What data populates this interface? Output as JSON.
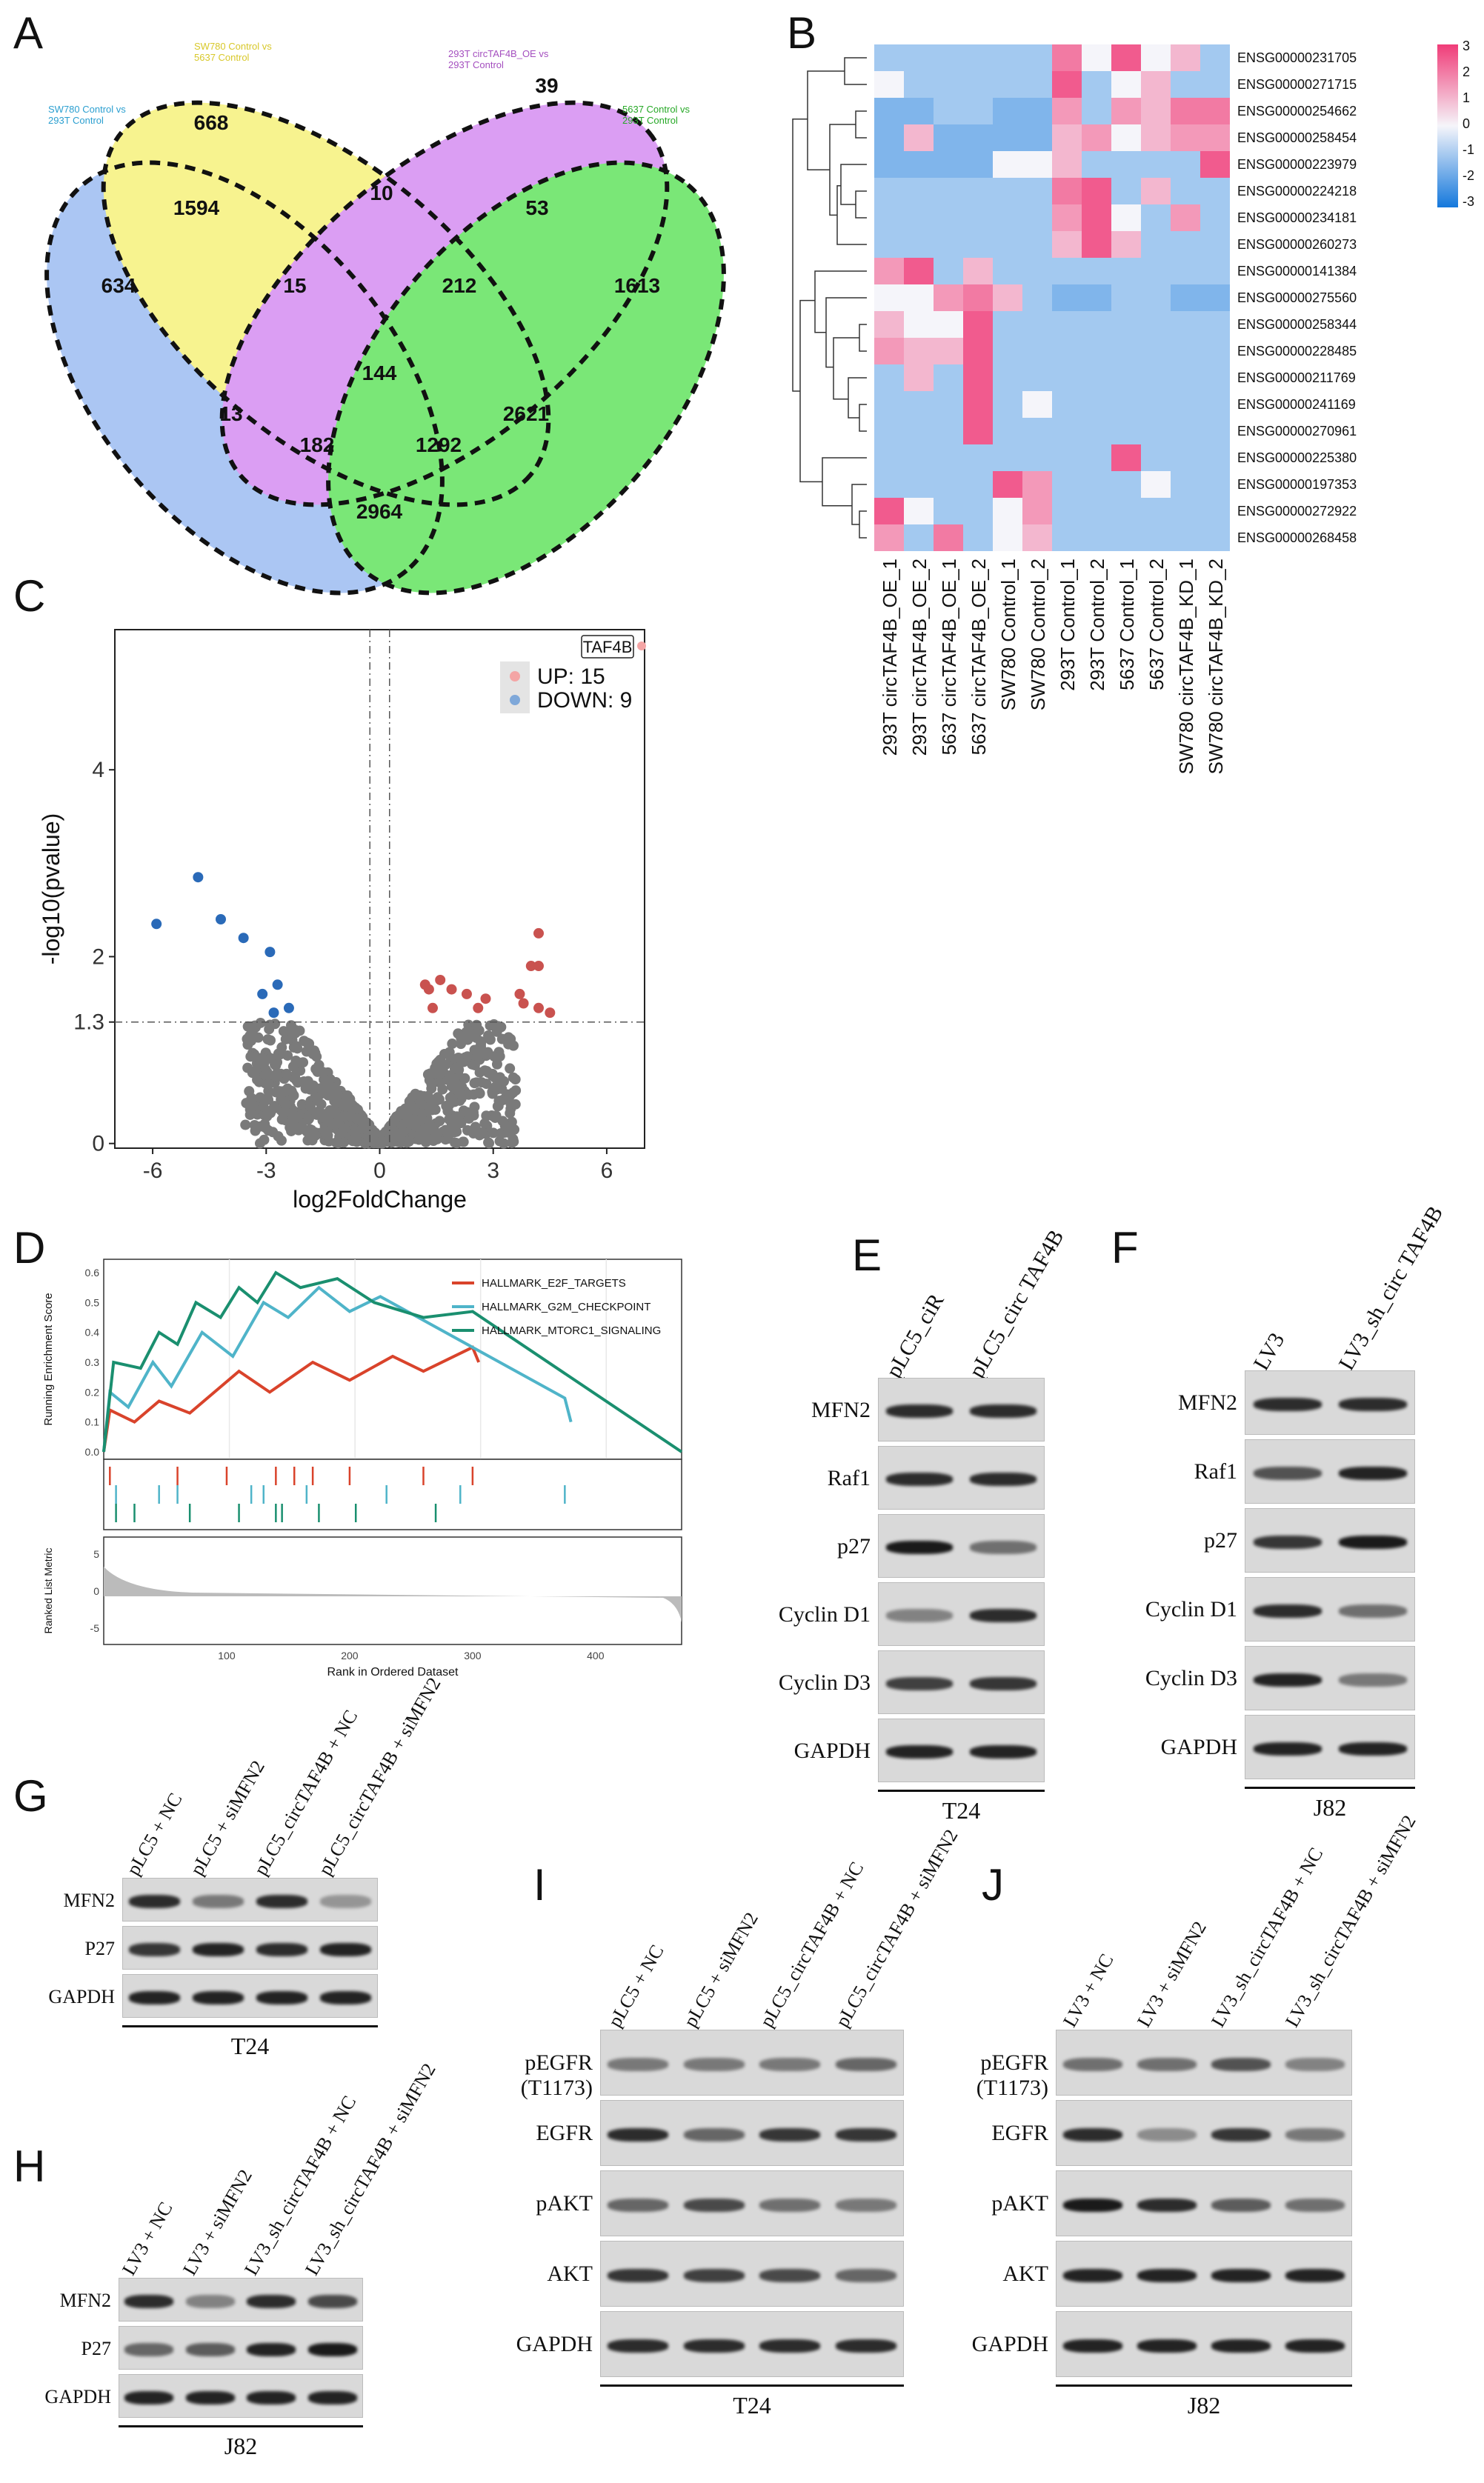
{
  "panel_labels": {
    "A": "A",
    "B": "B",
    "C": "C",
    "D": "D",
    "E": "E",
    "F": "F",
    "G": "G",
    "H": "H",
    "I": "I",
    "J": "J"
  },
  "venn": {
    "set_labels": [
      "SW780 Control vs 293T Control",
      "SW780 Control vs 5637 Control",
      "293T circTAF4B_OE vs 293T Control",
      "5637 Control vs 293T Control"
    ],
    "counts": [
      "634",
      "668",
      "39",
      "1613",
      "1594",
      "10",
      "53",
      "15",
      "212",
      "144",
      "13",
      "182",
      "1292",
      "2621",
      "2964"
    ],
    "colors": [
      "#8fb3ef",
      "#f5ef6a",
      "#cf7ef0",
      "#4ee04a"
    ]
  },
  "heatmap": {
    "genes": [
      "ENSG00000231705",
      "ENSG00000271715",
      "ENSG00000254662",
      "ENSG00000258454",
      "ENSG00000223979",
      "ENSG00000224218",
      "ENSG00000234181",
      "ENSG00000260273",
      "ENSG00000141384",
      "ENSG00000275560",
      "ENSG00000258344",
      "ENSG00000228485",
      "ENSG00000211769",
      "ENSG00000241169",
      "ENSG00000270961",
      "ENSG00000225380",
      "ENSG00000197353",
      "ENSG00000272922",
      "ENSG00000268458"
    ],
    "samples": [
      "293T circTAF4B_OE_1",
      "293T circTAF4B_OE_2",
      "5637 circTAF4B_OE_1",
      "5637 circTAF4B_OE_2",
      "SW780 Control_1",
      "SW780 Control_2",
      "293T Control_1",
      "293T Control_2",
      "5637 Control_1",
      "5637 Control_2",
      "SW780 circTAF4B_KD_1",
      "SW780 circTAF4B_KD_2"
    ],
    "scale": [
      "3",
      "2",
      "1",
      "0",
      "-1",
      "-2",
      "-3"
    ]
  },
  "chart_data": {
    "type": "scatter",
    "xlabel": "log2FoldChange",
    "ylabel": "-log10(pvalue)",
    "xticks": [
      "-6",
      "-3",
      "0",
      "3",
      "6"
    ],
    "yticks": [
      "0",
      "1.3",
      "2",
      "4"
    ],
    "legend": {
      "title": "TAF4B",
      "up": "UP: 15",
      "down": "DOWN: 9"
    },
    "up_points": [
      [
        4.2,
        2.25
      ],
      [
        4.0,
        1.9
      ],
      [
        4.2,
        1.9
      ],
      [
        1.3,
        1.65
      ],
      [
        1.6,
        1.75
      ],
      [
        1.9,
        1.65
      ],
      [
        2.3,
        1.6
      ],
      [
        3.8,
        1.5
      ],
      [
        4.2,
        1.45
      ],
      [
        4.5,
        1.4
      ],
      [
        3.7,
        1.6
      ],
      [
        1.4,
        1.45
      ],
      [
        2.8,
        1.55
      ],
      [
        2.6,
        1.45
      ],
      [
        1.2,
        1.7
      ]
    ],
    "down_points": [
      [
        -5.9,
        2.35
      ],
      [
        -4.8,
        2.85
      ],
      [
        -4.2,
        2.4
      ],
      [
        -3.6,
        2.2
      ],
      [
        -2.9,
        2.05
      ],
      [
        -2.7,
        1.7
      ],
      [
        -3.1,
        1.6
      ],
      [
        -2.4,
        1.45
      ],
      [
        -2.8,
        1.4
      ]
    ]
  },
  "gsea": {
    "ylabel_top": "Running Enrichment Score",
    "ylabel_bottom": "Ranked List Metric",
    "xlabel": "Rank in Ordered Dataset",
    "yticks_top": [
      "0.6",
      "0.5",
      "0.4",
      "0.3",
      "0.2",
      "0.1",
      "0.0"
    ],
    "yticks_bottom": [
      "5",
      "0",
      "-5"
    ],
    "xticks": [
      "100",
      "200",
      "300",
      "400"
    ],
    "legend": [
      "HALLMARK_E2F_TARGETS",
      "HALLMARK_G2M_CHECKPOINT",
      "HALLMARK_MTORC1_SIGNALING"
    ],
    "colors": [
      "#d9432b",
      "#4fb4c9",
      "#1a8f6f"
    ]
  },
  "blot_E": {
    "lanes": [
      "pLC5_ciR",
      "pLC5_circ TAF4B"
    ],
    "rows": [
      "MFN2",
      "Raf1",
      "p27",
      "Cyclin D1",
      "Cyclin D3",
      "GAPDH"
    ],
    "cell": "T24"
  },
  "blot_F": {
    "lanes": [
      "LV3",
      "LV3_sh_circ TAF4B"
    ],
    "rows": [
      "MFN2",
      "Raf1",
      "p27",
      "Cyclin D1",
      "Cyclin D3",
      "GAPDH"
    ],
    "cell": "J82"
  },
  "blot_G": {
    "lanes": [
      "pLC5 + NC",
      "pLC5 + siMFN2",
      "pLC5_circTAF4B + NC",
      "pLC5_circTAF4B + siMFN2"
    ],
    "rows": [
      "MFN2",
      "P27",
      "GAPDH"
    ],
    "cell": "T24"
  },
  "blot_H": {
    "lanes": [
      "LV3 + NC",
      "LV3 + siMFN2",
      "LV3_sh_circTAF4B + NC",
      "LV3_sh_circTAF4B + siMFN2"
    ],
    "rows": [
      "MFN2",
      "P27",
      "GAPDH"
    ],
    "cell": "J82"
  },
  "blot_I": {
    "lanes": [
      "pLC5 + NC",
      "pLC5 + siMFN2",
      "pLC5_circTAF4B + NC",
      "pLC5_circTAF4B + siMFN2"
    ],
    "rows": [
      "pEGFR (T1173)",
      "EGFR",
      "pAKT",
      "AKT",
      "GAPDH"
    ],
    "cell": "T24"
  },
  "blot_J": {
    "lanes": [
      "LV3 + NC",
      "LV3 + siMFN2",
      "LV3_sh_circTAF4B + NC",
      "LV3_sh_circTAF4B + siMFN2"
    ],
    "rows": [
      "pEGFR (T1173)",
      "EGFR",
      "pAKT",
      "AKT",
      "GAPDH"
    ],
    "cell": "J82"
  }
}
